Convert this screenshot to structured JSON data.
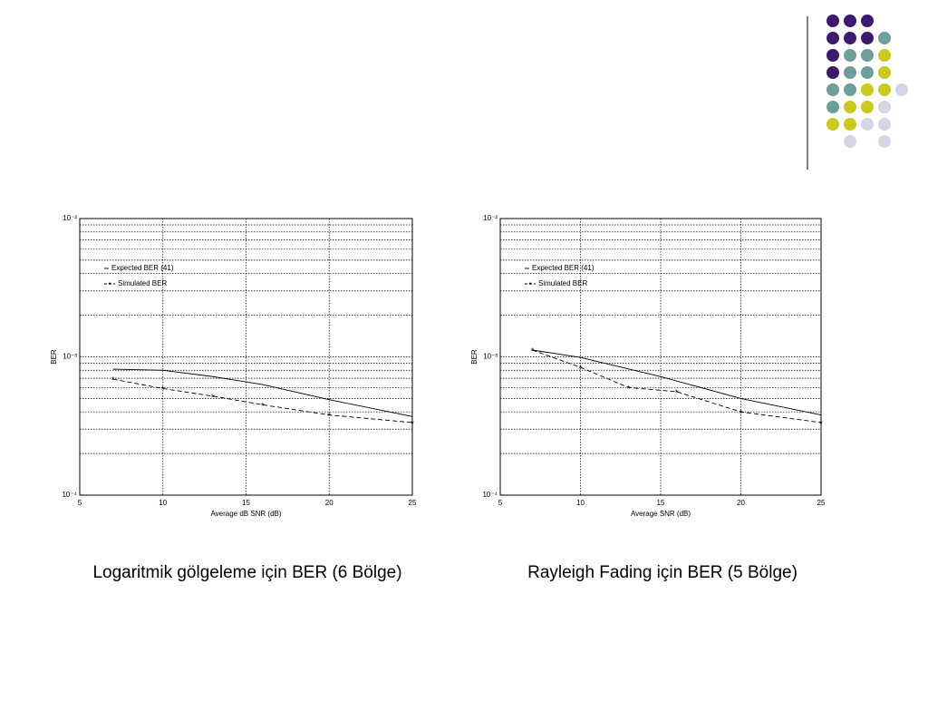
{
  "chart_data": [
    {
      "type": "line",
      "caption": "Logaritmik gölgeleme için BER (6 Bölge)",
      "xlabel": "Average dB SNR (dB)",
      "ylabel": "BER",
      "xlim": [
        5,
        25
      ],
      "xticks": [
        5,
        10,
        15,
        20,
        25
      ],
      "ylim": [
        0.0001,
        0.01
      ],
      "ylog": true,
      "yticks": [
        {
          "value": 0.0001,
          "label": "10⁻⁴"
        },
        {
          "value": 0.001,
          "label": "10⁻³"
        },
        {
          "value": 0.01,
          "label": "10⁻²"
        }
      ],
      "grid": true,
      "legend": "upper left",
      "series": [
        {
          "name": "Expected BER (41)",
          "color": "#000000",
          "style": "solid",
          "x": [
            7,
            10,
            13,
            16,
            20,
            25
          ],
          "values": [
            0.000815,
            0.0008,
            0.00072,
            0.00063,
            0.00049,
            0.00037
          ]
        },
        {
          "name": "Simulated BER",
          "color": "#000000",
          "style": "dashed",
          "marker": "asterisk",
          "x": [
            7,
            10,
            13,
            16,
            20,
            25
          ],
          "values": [
            0.00069,
            0.00059,
            0.00052,
            0.00045,
            0.00038,
            0.000335
          ]
        }
      ]
    },
    {
      "type": "line",
      "caption": "Rayleigh Fading için BER (5 Bölge)",
      "xlabel": "Average SNR (dB)",
      "ylabel": "BER",
      "xlim": [
        5,
        25
      ],
      "xticks": [
        5,
        10,
        15,
        20,
        25
      ],
      "ylim": [
        0.0001,
        0.01
      ],
      "ylog": true,
      "yticks": [
        {
          "value": 0.0001,
          "label": "10⁻⁴"
        },
        {
          "value": 0.001,
          "label": "10⁻³"
        },
        {
          "value": 0.01,
          "label": "10⁻²"
        }
      ],
      "grid": true,
      "legend": "upper left",
      "series": [
        {
          "name": "Expected BER (41)",
          "color": "#000000",
          "style": "solid",
          "x": [
            7,
            10,
            15,
            20,
            25
          ],
          "values": [
            0.00112,
            0.00099,
            0.00072,
            0.0005,
            0.00038
          ]
        },
        {
          "name": "Simulated BER",
          "color": "#000000",
          "style": "dashed",
          "marker": "asterisk",
          "x": [
            7,
            10,
            13,
            16,
            20,
            25
          ],
          "values": [
            0.00112,
            0.00084,
            0.0006,
            0.00056,
            0.0004,
            0.000335
          ]
        }
      ]
    }
  ]
}
